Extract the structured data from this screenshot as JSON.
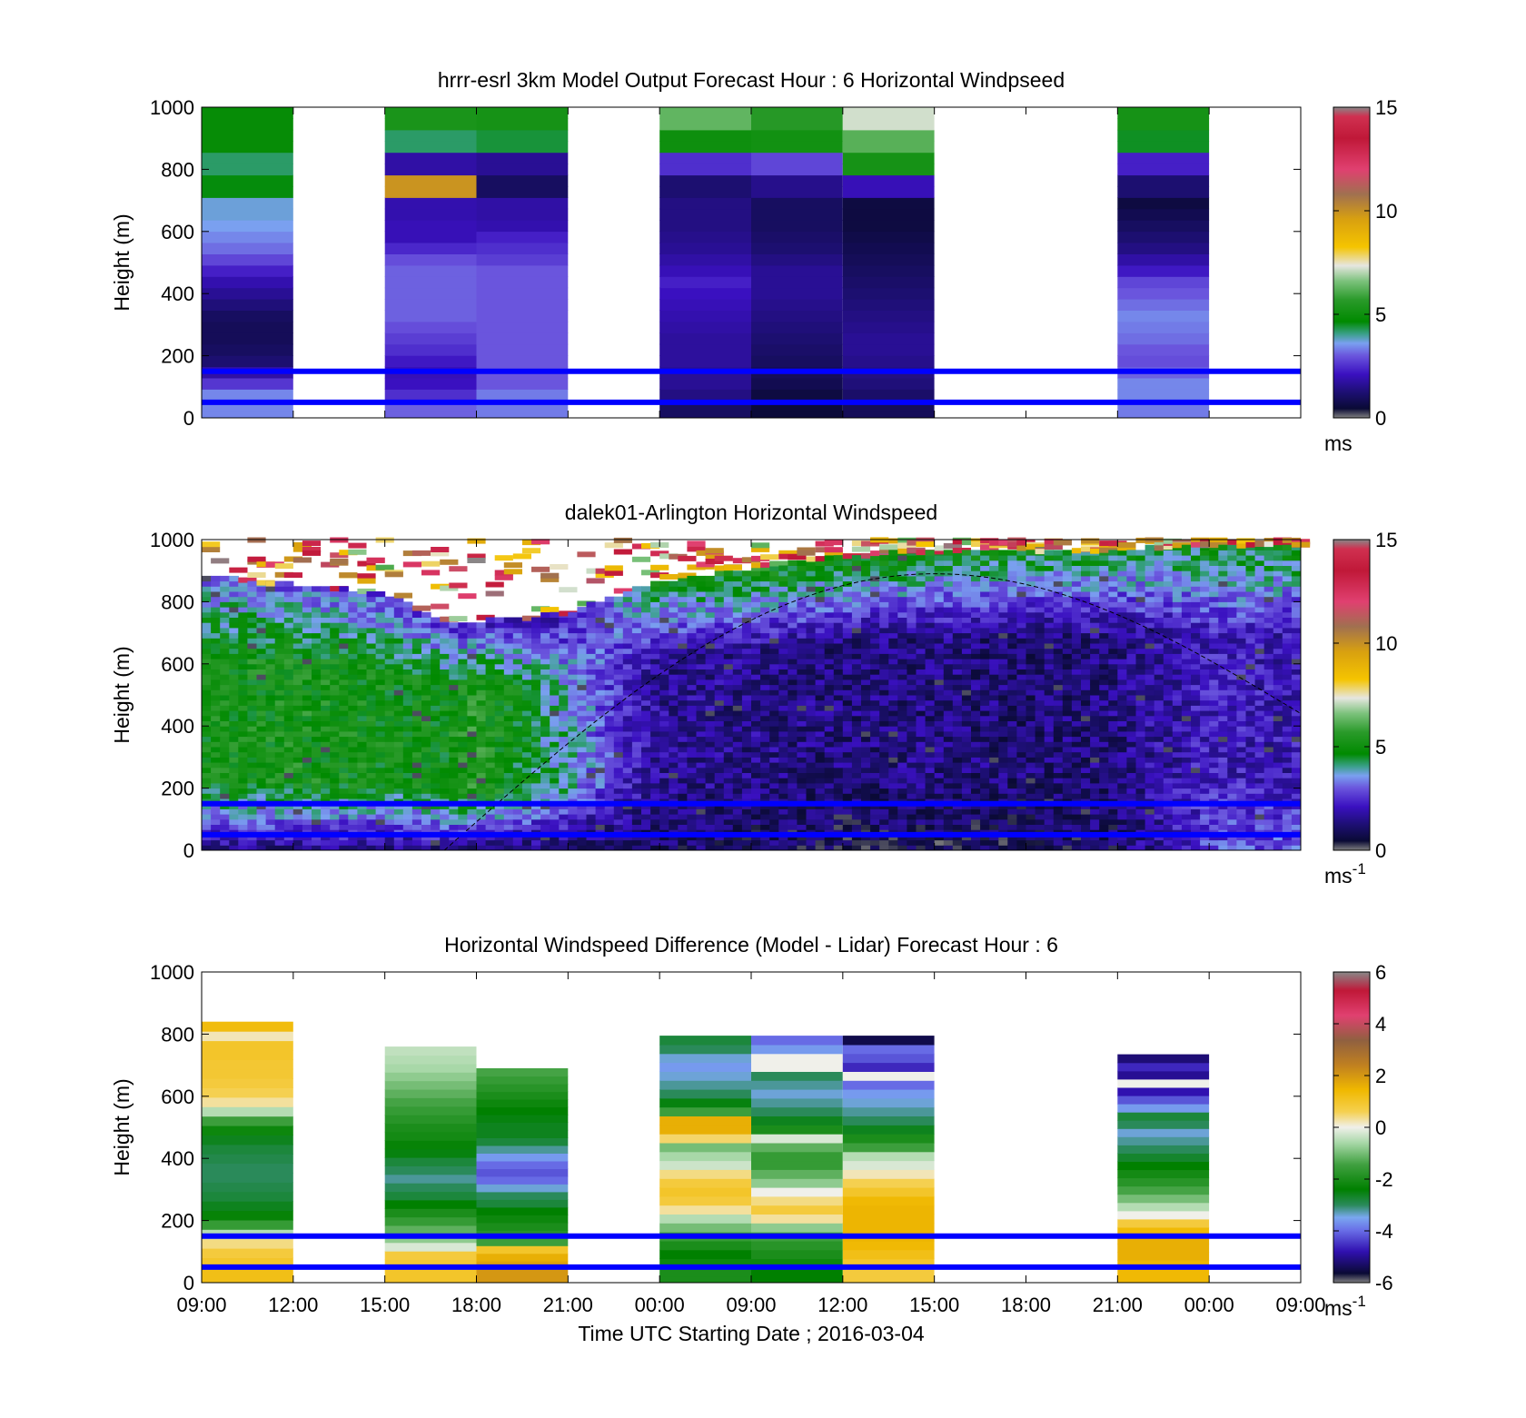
{
  "figure": {
    "xlabel": "Time UTC  Starting Date ; 2016-03-04",
    "x_ticks": [
      "09:00",
      "12:00",
      "15:00",
      "18:00",
      "21:00",
      "00:00",
      "09:00",
      "12:00",
      "15:00",
      "18:00",
      "21:00",
      "00:00",
      "09:00"
    ],
    "ylabel": "Height (m)",
    "y_ticks": [
      "0",
      "200",
      "400",
      "600",
      "800",
      "1000"
    ],
    "reference_lines_color": "#0000ff"
  },
  "chart_data": [
    {
      "type": "heatmap",
      "title": "hrrr-esrl 3km Model Output   Forecast Hour : 6 Horizontal Windpseed",
      "ylabel": "Height (m)",
      "ylim": [
        0,
        1000
      ],
      "colorbar": {
        "ticks": [
          "0",
          "5",
          "10",
          "15"
        ],
        "range": [
          0,
          15
        ],
        "unit_base": "ms",
        "unit_sup": ""
      },
      "reference_heights": [
        50,
        150
      ],
      "columns": [
        {
          "x_index": 0,
          "top": 1000,
          "values": [
            3.4,
            3.4,
            2.6,
            1.8,
            1.2,
            1.0,
            0.9,
            0.9,
            1.0,
            1.3,
            1.6,
            1.9,
            2.3,
            2.8,
            3.2,
            3.4,
            3.6,
            3.7,
            3.7,
            4.6,
            4.6,
            4.2,
            4.2,
            4.8,
            4.8,
            4.8,
            4.8
          ]
        },
        {
          "x_index": 2,
          "top": 1000,
          "values": [
            3.1,
            2.5,
            2.1,
            2.0,
            2.2,
            2.5,
            2.7,
            2.9,
            3.1,
            3.1,
            3.1,
            3.1,
            3.1,
            2.9,
            2.4,
            2.0,
            2.0,
            1.9,
            1.9,
            9.9,
            9.9,
            1.8,
            1.8,
            4.2,
            4.2,
            5.3,
            5.3
          ]
        },
        {
          "x_index": 3,
          "top": 1000,
          "values": [
            3.3,
            3.3,
            3.0,
            3.0,
            3.0,
            3.0,
            3.0,
            3.0,
            3.0,
            3.0,
            3.0,
            3.0,
            3.0,
            2.7,
            2.5,
            2.3,
            1.9,
            1.8,
            1.8,
            1.0,
            1.0,
            1.6,
            1.6,
            4.4,
            4.4,
            5.2,
            5.2
          ]
        },
        {
          "x_index": 5,
          "top": 1000,
          "values": [
            1.0,
            1.4,
            1.6,
            1.6,
            1.7,
            1.7,
            1.7,
            1.8,
            1.9,
            2.0,
            2.1,
            2.3,
            2.0,
            1.8,
            1.6,
            1.5,
            1.4,
            1.4,
            1.4,
            1.2,
            1.2,
            2.5,
            2.5,
            5.0,
            5.0,
            6.3,
            6.3
          ]
        },
        {
          "x_index": 6,
          "top": 1000,
          "values": [
            0.5,
            0.6,
            0.8,
            0.9,
            1.0,
            1.1,
            1.2,
            1.3,
            1.4,
            1.5,
            1.6,
            1.6,
            1.6,
            1.4,
            1.2,
            1.1,
            1.0,
            1.0,
            1.0,
            1.5,
            1.5,
            2.8,
            2.8,
            5.1,
            5.1,
            5.6,
            5.6
          ]
        },
        {
          "x_index": 7,
          "top": 1000,
          "values": [
            0.9,
            1.1,
            1.3,
            1.4,
            1.5,
            1.6,
            1.6,
            1.5,
            1.4,
            1.3,
            1.2,
            1.1,
            1.0,
            0.9,
            0.8,
            0.7,
            0.6,
            0.6,
            0.6,
            2.0,
            2.0,
            5.2,
            5.2,
            6.2,
            6.2,
            7.2,
            7.2
          ]
        },
        {
          "x_index": 10,
          "top": 1000,
          "values": [
            3.3,
            3.4,
            3.4,
            3.1,
            2.9,
            3.0,
            3.2,
            3.3,
            3.4,
            3.2,
            3.0,
            2.8,
            2.2,
            1.8,
            1.4,
            1.2,
            1.0,
            0.8,
            0.6,
            1.2,
            1.2,
            2.3,
            2.3,
            4.5,
            4.5,
            5.2,
            5.2
          ]
        }
      ]
    },
    {
      "type": "heatmap",
      "title": "dalek01-Arlington  Horizontal Windspeed",
      "ylabel": "Height (m)",
      "ylim": [
        0,
        1000
      ],
      "colorbar": {
        "ticks": [
          "0",
          "5",
          "10",
          "15"
        ],
        "range": [
          0,
          15
        ],
        "unit_base": "ms",
        "unit_sup": "-1"
      },
      "reference_heights": [
        50,
        150
      ],
      "curve": {
        "peak_x_index": 8.0,
        "peak_height": 890,
        "start_x_index": 2.65,
        "start_height": 0,
        "end_x_index": 12.0,
        "end_height": 440,
        "style": "dashed"
      },
      "profiles": [
        {
          "x_index": 0.0,
          "top": 880,
          "low": 1.8,
          "mid": 5.0,
          "up": 3.2
        },
        {
          "x_index": 1.0,
          "top": 850,
          "low": 1.5,
          "mid": 5.2,
          "up": 3.0
        },
        {
          "x_index": 2.0,
          "top": 820,
          "low": 1.5,
          "mid": 5.0,
          "up": 2.8
        },
        {
          "x_index": 2.7,
          "top": 730,
          "low": 1.6,
          "mid": 5.0,
          "up": 2.4
        },
        {
          "x_index": 3.0,
          "top": 730,
          "low": 1.5,
          "mid": 5.5,
          "up": 2.2
        },
        {
          "x_index": 3.4,
          "top": 740,
          "low": 1.4,
          "mid": 4.8,
          "up": 2.2
        },
        {
          "x_index": 4.0,
          "top": 760,
          "low": 1.2,
          "mid": 3.8,
          "up": 2.0
        },
        {
          "x_index": 4.6,
          "top": 820,
          "low": 1.0,
          "mid": 2.4,
          "up": 3.6
        },
        {
          "x_index": 5.0,
          "top": 860,
          "low": 1.0,
          "mid": 1.6,
          "up": 4.8
        },
        {
          "x_index": 6.0,
          "top": 900,
          "low": 1.0,
          "mid": 1.5,
          "up": 5.2
        },
        {
          "x_index": 7.0,
          "top": 940,
          "low": 0.8,
          "mid": 1.3,
          "up": 5.2
        },
        {
          "x_index": 8.0,
          "top": 960,
          "low": 0.8,
          "mid": 1.4,
          "up": 5.0
        },
        {
          "x_index": 9.0,
          "top": 960,
          "low": 0.9,
          "mid": 1.2,
          "up": 4.8
        },
        {
          "x_index": 10.0,
          "top": 960,
          "low": 1.0,
          "mid": 1.4,
          "up": 4.6
        },
        {
          "x_index": 11.0,
          "top": 980,
          "low": 2.8,
          "mid": 2.2,
          "up": 4.6
        },
        {
          "x_index": 12.0,
          "top": 980,
          "low": 3.0,
          "mid": 2.0,
          "up": 4.8
        }
      ]
    },
    {
      "type": "heatmap",
      "title": "Horizontal Windspeed Difference (Model - Lidar) Forecast Hour : 6",
      "ylabel": "Height (m)",
      "ylim": [
        0,
        1000
      ],
      "colorbar": {
        "ticks": [
          "-6",
          "-4",
          "-2",
          "0",
          "2",
          "4",
          "6"
        ],
        "range": [
          -6,
          6
        ],
        "unit_base": "ms",
        "unit_sup": "-1"
      },
      "reference_heights": [
        50,
        150
      ],
      "columns": [
        {
          "x_index": 0,
          "top": 840,
          "values": [
            1.2,
            1.0,
            0.8,
            0.4,
            -0.5,
            -1.6,
            -2.3,
            -2.6,
            -2.8,
            -2.9,
            -3.0,
            -3.0,
            -2.9,
            -2.8,
            -2.6,
            -2.2,
            -1.5,
            -0.5,
            0.3,
            0.6,
            0.8,
            0.9,
            0.9,
            1.0,
            1.0,
            0.2,
            1.3
          ]
        },
        {
          "x_index": 2,
          "top": 760,
          "values": [
            1.0,
            0.9,
            0.8,
            -0.2,
            -0.8,
            -1.2,
            -1.6,
            -2.0,
            -2.4,
            -2.8,
            -3.0,
            -3.2,
            -3.0,
            -2.8,
            -2.5,
            -2.3,
            -2.1,
            -2.0,
            -1.8,
            -1.6,
            -1.4,
            -1.2,
            -1.0,
            -0.8,
            -0.6,
            -0.5,
            -0.4
          ]
        },
        {
          "x_index": 3,
          "top": 690,
          "values": [
            2.0,
            1.8,
            1.6,
            1.0,
            -1.5,
            -1.8,
            -2.0,
            -2.2,
            -2.4,
            -2.8,
            -3.0,
            -3.4,
            -4.0,
            -4.2,
            -4.0,
            -3.6,
            -3.2,
            -2.8,
            -2.6,
            -2.6,
            -2.5,
            -2.4,
            -2.2,
            -2.0,
            -1.8,
            -1.6,
            -1.4
          ]
        },
        {
          "x_index": 5,
          "top": 795,
          "values": [
            -2.0,
            -2.2,
            -2.4,
            -2.0,
            -1.6,
            -1.0,
            -0.5,
            0.3,
            0.8,
            1.0,
            0.8,
            0.4,
            -0.3,
            -0.6,
            -1.0,
            0.5,
            1.6,
            1.6,
            -1.5,
            -2.5,
            -3.0,
            -3.2,
            -3.4,
            -3.6,
            -3.4,
            -3.0,
            -2.8
          ]
        },
        {
          "x_index": 6,
          "top": 795,
          "values": [
            -2.4,
            -2.2,
            -2.0,
            -1.8,
            -1.5,
            -0.8,
            0.3,
            0.8,
            0.4,
            0.0,
            -0.8,
            -1.2,
            -1.6,
            -1.6,
            -1.2,
            -0.2,
            -2.0,
            -2.6,
            -3.0,
            -3.2,
            -3.4,
            -3.2,
            -3.0,
            0.0,
            0.0,
            -3.6,
            -4.0
          ]
        },
        {
          "x_index": 7,
          "top": 795,
          "values": [
            0.8,
            1.0,
            1.2,
            1.4,
            1.5,
            1.5,
            1.5,
            1.5,
            1.4,
            1.0,
            0.6,
            0.2,
            -0.2,
            -0.5,
            -1.5,
            -2.0,
            -2.6,
            -3.0,
            -3.2,
            -3.4,
            -3.6,
            -4.0,
            0.0,
            -4.6,
            -4.2,
            -4.0,
            -5.5
          ]
        },
        {
          "x_index": 10,
          "top": 735,
          "values": [
            1.4,
            1.5,
            1.6,
            1.6,
            1.6,
            1.4,
            0.8,
            0.0,
            -0.5,
            -1.0,
            -1.4,
            -1.8,
            -2.1,
            -2.4,
            -2.7,
            -3.0,
            -3.2,
            -3.4,
            -3.0,
            -2.8,
            -3.6,
            -4.2,
            -4.8,
            0.0,
            -5.0,
            -4.6,
            -5.2
          ]
        }
      ]
    }
  ]
}
